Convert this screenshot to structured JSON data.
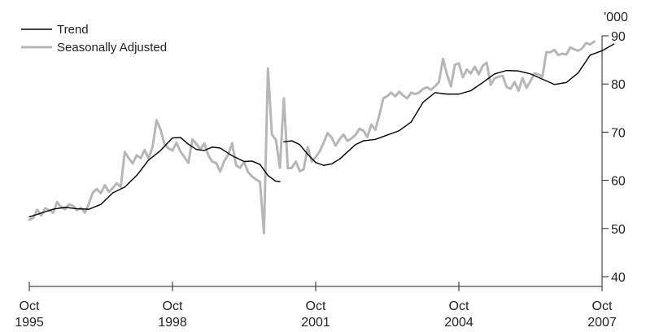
{
  "chart_data": {
    "type": "line",
    "unit_label": "'000",
    "x_ticks": [
      {
        "month": 0,
        "top": "Oct",
        "bottom": "1995"
      },
      {
        "month": 36,
        "top": "Oct",
        "bottom": "1998"
      },
      {
        "month": 72,
        "top": "Oct",
        "bottom": "2001"
      },
      {
        "month": 108,
        "top": "Oct",
        "bottom": "2004"
      },
      {
        "month": 144,
        "top": "Oct",
        "bottom": "2007"
      }
    ],
    "y_ticks": [
      40,
      50,
      60,
      70,
      80,
      90
    ],
    "ylim": [
      40,
      90
    ],
    "x_range": [
      0,
      144
    ],
    "legend": {
      "position": "top-left"
    },
    "grid": false,
    "series": [
      {
        "name": "Trend",
        "color": "#000000",
        "segments": [
          [
            [
              0,
              52.4
            ],
            [
              3,
              53.2
            ],
            [
              6,
              54.0
            ],
            [
              9,
              54.4
            ],
            [
              12,
              54.1
            ],
            [
              15,
              54.0
            ],
            [
              18,
              55.0
            ],
            [
              21,
              57.4
            ],
            [
              24,
              58.6
            ],
            [
              27,
              61.0
            ],
            [
              30,
              64.2
            ],
            [
              33,
              66.2
            ],
            [
              36,
              68.8
            ],
            [
              38,
              68.9
            ],
            [
              40,
              67.5
            ],
            [
              42,
              66.4
            ],
            [
              44,
              66.2
            ],
            [
              46,
              66.9
            ],
            [
              48,
              66.7
            ],
            [
              51,
              65.1
            ],
            [
              54,
              63.9
            ],
            [
              56,
              64.0
            ],
            [
              58,
              63.3
            ],
            [
              60,
              61.0
            ],
            [
              62,
              59.8
            ],
            [
              63,
              59.7
            ]
          ],
          [
            [
              64,
              68.0
            ],
            [
              66,
              68.2
            ],
            [
              68,
              67.4
            ],
            [
              70,
              65.4
            ],
            [
              72,
              63.7
            ],
            [
              74,
              63.1
            ],
            [
              76,
              63.4
            ],
            [
              78,
              64.4
            ],
            [
              80,
              65.9
            ],
            [
              82,
              67.4
            ],
            [
              84,
              68.2
            ],
            [
              87,
              68.5
            ],
            [
              90,
              69.4
            ],
            [
              93,
              70.3
            ],
            [
              96,
              72.1
            ],
            [
              99,
              76.2
            ],
            [
              102,
              78.2
            ],
            [
              105,
              77.9
            ],
            [
              108,
              77.9
            ],
            [
              111,
              78.6
            ],
            [
              114,
              80.3
            ],
            [
              117,
              82.1
            ],
            [
              120,
              82.8
            ],
            [
              123,
              82.7
            ],
            [
              126,
              82.1
            ],
            [
              129,
              81.0
            ],
            [
              132,
              79.9
            ],
            [
              135,
              80.3
            ],
            [
              138,
              82.3
            ],
            [
              141,
              86.0
            ],
            [
              144,
              86.9
            ],
            [
              147,
              88.3
            ]
          ]
        ]
      },
      {
        "name": "Seasonally Adjusted",
        "color": "#b7b7b7",
        "segments": [
          [
            [
              0,
              51.8
            ],
            [
              1,
              52.2
            ],
            [
              2,
              53.9
            ],
            [
              3,
              52.7
            ],
            [
              4,
              54.2
            ],
            [
              5,
              53.8
            ],
            [
              6,
              53.3
            ],
            [
              7,
              55.5
            ],
            [
              8,
              54.4
            ],
            [
              9,
              54.0
            ],
            [
              10,
              55.0
            ],
            [
              11,
              54.7
            ],
            [
              12,
              53.8
            ],
            [
              13,
              54.3
            ],
            [
              14,
              53.3
            ],
            [
              15,
              55.2
            ],
            [
              16,
              57.5
            ],
            [
              17,
              58.2
            ],
            [
              18,
              57.3
            ],
            [
              19,
              59.0
            ],
            [
              20,
              57.6
            ],
            [
              21,
              58.4
            ],
            [
              22,
              59.4
            ],
            [
              23,
              58.6
            ],
            [
              24,
              65.9
            ],
            [
              25,
              64.6
            ],
            [
              26,
              63.5
            ],
            [
              27,
              65.2
            ],
            [
              28,
              64.6
            ],
            [
              29,
              66.3
            ],
            [
              30,
              64.5
            ],
            [
              31,
              67.0
            ],
            [
              32,
              72.5
            ],
            [
              33,
              70.5
            ],
            [
              34,
              67.5
            ],
            [
              35,
              66.6
            ],
            [
              36,
              66.2
            ],
            [
              37,
              67.8
            ],
            [
              38,
              66.0
            ],
            [
              39,
              64.8
            ],
            [
              40,
              63.6
            ],
            [
              41,
              68.5
            ],
            [
              42,
              67.6
            ],
            [
              43,
              66.4
            ],
            [
              44,
              67.7
            ],
            [
              45,
              65.2
            ],
            [
              46,
              63.9
            ],
            [
              47,
              63.6
            ],
            [
              48,
              61.8
            ],
            [
              49,
              64.0
            ],
            [
              50,
              65.3
            ],
            [
              51,
              67.7
            ],
            [
              52,
              63.1
            ],
            [
              53,
              62.6
            ],
            [
              54,
              63.8
            ],
            [
              55,
              61.7
            ],
            [
              56,
              60.8
            ],
            [
              57,
              60.2
            ],
            [
              58,
              59.7
            ],
            [
              59,
              49.0
            ],
            [
              60,
              83.2
            ],
            [
              61,
              69.5
            ],
            [
              62,
              68.4
            ],
            [
              63,
              62.6
            ],
            [
              64,
              77.0
            ],
            [
              65,
              62.5
            ],
            [
              66,
              62.6
            ],
            [
              67,
              63.9
            ],
            [
              68,
              61.9
            ],
            [
              69,
              62.3
            ],
            [
              70,
              66.9
            ],
            [
              71,
              63.9
            ],
            [
              72,
              64.8
            ],
            [
              73,
              66.0
            ],
            [
              74,
              67.8
            ],
            [
              75,
              69.8
            ],
            [
              76,
              68.9
            ],
            [
              77,
              67.2
            ],
            [
              78,
              68.5
            ],
            [
              79,
              69.5
            ],
            [
              80,
              68.2
            ],
            [
              81,
              68.7
            ],
            [
              82,
              69.4
            ],
            [
              83,
              70.7
            ],
            [
              84,
              70.3
            ],
            [
              85,
              69.0
            ],
            [
              86,
              71.6
            ],
            [
              87,
              70.5
            ],
            [
              88,
              73.5
            ],
            [
              89,
              77.0
            ],
            [
              90,
              77.5
            ],
            [
              91,
              78.2
            ],
            [
              92,
              77.4
            ],
            [
              93,
              78.4
            ],
            [
              94,
              77.6
            ],
            [
              95,
              77.0
            ],
            [
              96,
              78.2
            ],
            [
              97,
              77.9
            ],
            [
              98,
              78.2
            ],
            [
              99,
              79.0
            ],
            [
              100,
              79.3
            ],
            [
              101,
              78.8
            ],
            [
              102,
              79.5
            ],
            [
              103,
              80.4
            ],
            [
              104,
              85.2
            ],
            [
              105,
              82.0
            ],
            [
              106,
              79.5
            ],
            [
              107,
              84.0
            ],
            [
              108,
              84.3
            ],
            [
              109,
              81.4
            ],
            [
              110,
              83.0
            ],
            [
              111,
              82.2
            ],
            [
              112,
              83.6
            ],
            [
              113,
              82.0
            ],
            [
              114,
              83.8
            ],
            [
              115,
              84.4
            ],
            [
              116,
              79.8
            ],
            [
              117,
              81.2
            ],
            [
              118,
              81.5
            ],
            [
              119,
              81.7
            ],
            [
              120,
              79.4
            ],
            [
              121,
              79.0
            ],
            [
              122,
              80.4
            ],
            [
              123,
              78.6
            ],
            [
              124,
              81.2
            ],
            [
              125,
              79.2
            ],
            [
              126,
              80.6
            ],
            [
              127,
              82.2
            ],
            [
              128,
              82.0
            ],
            [
              129,
              81.5
            ],
            [
              130,
              86.6
            ],
            [
              131,
              86.6
            ],
            [
              132,
              87.1
            ],
            [
              133,
              86.0
            ],
            [
              134,
              86.3
            ],
            [
              135,
              86.1
            ],
            [
              136,
              87.6
            ],
            [
              137,
              87.2
            ],
            [
              138,
              86.9
            ],
            [
              139,
              87.4
            ],
            [
              140,
              88.5
            ],
            [
              141,
              88.2
            ],
            [
              142,
              88.8
            ]
          ]
        ]
      }
    ]
  }
}
